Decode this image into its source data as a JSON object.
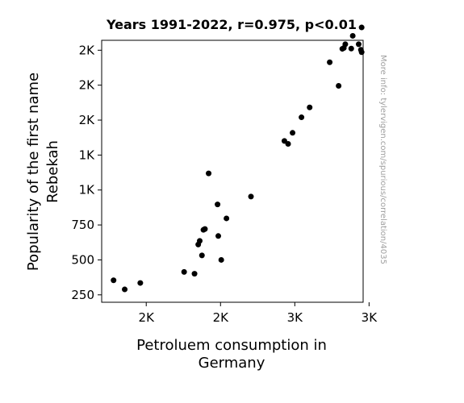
{
  "chart_data": {
    "type": "scatter",
    "title": "Years 1991-2022, r=0.975, p<0.01",
    "xlabel_lines": [
      "Petroluem consumption in",
      "Germany"
    ],
    "ylabel_lines": [
      "Popularity of the first name",
      "Rebekah"
    ],
    "watermark": "More info: tylervigen.com/spurious/correlation/4035",
    "xlim": [
      2540,
      2892
    ],
    "ylim": [
      197,
      2071
    ],
    "x_ticks": [
      {
        "value": 2600,
        "label": "2K"
      },
      {
        "value": 2700,
        "label": "2K"
      },
      {
        "value": 2800,
        "label": "3K"
      },
      {
        "value": 2900,
        "label": "3K"
      }
    ],
    "y_ticks": [
      {
        "value": 250,
        "label": "250"
      },
      {
        "value": 500,
        "label": "500"
      },
      {
        "value": 750,
        "label": "750"
      },
      {
        "value": 1000,
        "label": "1K"
      },
      {
        "value": 1250,
        "label": "1K"
      },
      {
        "value": 1500,
        "label": "2K"
      },
      {
        "value": 1750,
        "label": "2K"
      },
      {
        "value": 2000,
        "label": "2K"
      }
    ],
    "grid": false,
    "marker_color": "#000000",
    "points": [
      {
        "x": 2556,
        "y": 354
      },
      {
        "x": 2571,
        "y": 289
      },
      {
        "x": 2592,
        "y": 335
      },
      {
        "x": 2651,
        "y": 414
      },
      {
        "x": 2665,
        "y": 401
      },
      {
        "x": 2670,
        "y": 610
      },
      {
        "x": 2672,
        "y": 636
      },
      {
        "x": 2675,
        "y": 532
      },
      {
        "x": 2677,
        "y": 715
      },
      {
        "x": 2679,
        "y": 721
      },
      {
        "x": 2684,
        "y": 1119
      },
      {
        "x": 2696,
        "y": 897
      },
      {
        "x": 2697,
        "y": 671
      },
      {
        "x": 2701,
        "y": 500
      },
      {
        "x": 2708,
        "y": 797
      },
      {
        "x": 2741,
        "y": 953
      },
      {
        "x": 2786,
        "y": 1351
      },
      {
        "x": 2791,
        "y": 1330
      },
      {
        "x": 2797,
        "y": 1409
      },
      {
        "x": 2809,
        "y": 1520
      },
      {
        "x": 2820,
        "y": 1591
      },
      {
        "x": 2847,
        "y": 1914
      },
      {
        "x": 2859,
        "y": 1745
      },
      {
        "x": 2864,
        "y": 2010
      },
      {
        "x": 2866,
        "y": 2016
      },
      {
        "x": 2868,
        "y": 2043
      },
      {
        "x": 2876,
        "y": 2012
      },
      {
        "x": 2878,
        "y": 2103
      },
      {
        "x": 2886,
        "y": 2043
      },
      {
        "x": 2889,
        "y": 2003
      },
      {
        "x": 2890,
        "y": 1986
      },
      {
        "x": 2890,
        "y": 2163
      }
    ]
  }
}
